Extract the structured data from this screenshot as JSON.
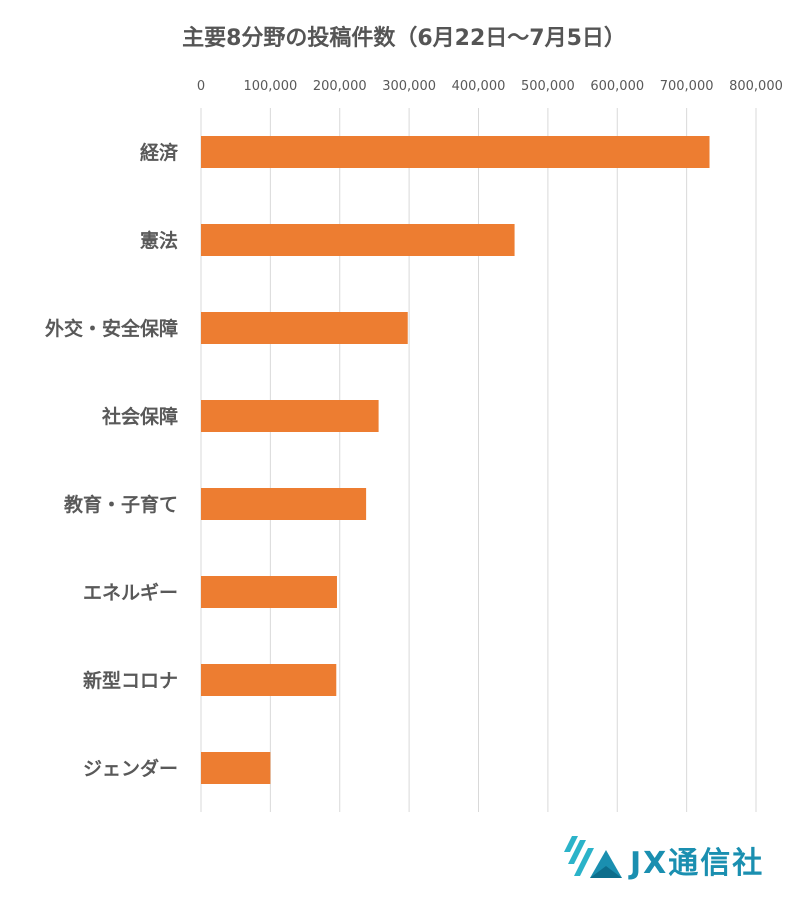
{
  "chart_data": {
    "type": "bar",
    "orientation": "horizontal",
    "title": "主要8分野の投稿件数（6月22日〜7月5日）",
    "categories": [
      "経済",
      "憲法",
      "外交・安全保障",
      "社会保障",
      "教育・子育て",
      "エネルギー",
      "新型コロナ",
      "ジェンダー"
    ],
    "values": [
      733000,
      452000,
      298000,
      256000,
      238000,
      196000,
      195000,
      100000
    ],
    "xlim": [
      0,
      800000
    ],
    "xticks": [
      0,
      100000,
      200000,
      300000,
      400000,
      500000,
      600000,
      700000,
      800000
    ],
    "xtick_labels": [
      "0",
      "100,000",
      "200,000",
      "300,000",
      "400,000",
      "500,000",
      "600,000",
      "700,000",
      "800,000"
    ],
    "xaxis_position": "top",
    "grid": true,
    "bar_color": "#ED7D31"
  },
  "logo": {
    "text": "JX通信社",
    "colors": [
      "#1a8fb0",
      "#2bb3c9",
      "#0d6e8c"
    ]
  }
}
